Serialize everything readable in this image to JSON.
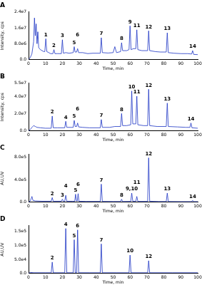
{
  "chart_data": [
    {
      "type": "line",
      "title": "A",
      "xlabel": "Time, min",
      "ylabel": "Intensity, cps",
      "color": "#1c34c4",
      "grid": false,
      "xlim": [
        0,
        100
      ],
      "xticks": [
        0,
        10,
        20,
        30,
        40,
        50,
        60,
        70,
        80,
        90,
        100
      ],
      "ylim": [
        0,
        24000000
      ],
      "yticks": [
        {
          "value": 0,
          "label": "0.0"
        },
        {
          "value": 8000000,
          "label": "8.0e6"
        },
        {
          "value": 16000000,
          "label": "1.6e7"
        },
        {
          "value": 24000000,
          "label": "2.4e7"
        }
      ],
      "x": [
        0,
        1,
        2,
        3,
        3.5,
        4,
        4.5,
        5,
        5.5,
        6,
        7,
        8,
        9,
        9.6,
        10.2,
        10.8,
        12,
        13,
        14.4,
        15,
        15.6,
        17,
        19.4,
        20,
        20.6,
        22,
        24,
        26.4,
        27,
        27.5,
        28.4,
        29,
        29.6,
        32,
        35,
        38,
        42.4,
        43,
        43.6,
        47,
        50,
        51,
        52,
        54.4,
        55,
        55.6,
        58,
        59.4,
        60,
        60.6,
        62,
        63.4,
        64,
        64.6,
        67,
        70.4,
        71,
        71.6,
        75,
        78,
        81.4,
        82,
        82.6,
        86,
        90,
        94,
        96.4,
        97,
        97.6,
        100
      ],
      "values": [
        0,
        1000000,
        3000000,
        9000000,
        21000000,
        12000000,
        18000000,
        8000000,
        14000000,
        6000000,
        5000000,
        4500000,
        4000000,
        4000000,
        10500000,
        4000000,
        3500000,
        3000000,
        3000000,
        5000000,
        3000000,
        3000000,
        3000000,
        10000000,
        3200000,
        3500000,
        3200000,
        3500000,
        6500000,
        3800000,
        3800000,
        5500000,
        3500000,
        3500000,
        3000000,
        3200000,
        3200000,
        11000000,
        3500000,
        3300000,
        3500000,
        6500000,
        3500000,
        4000000,
        8500000,
        4500000,
        4500000,
        5000000,
        17000000,
        5000000,
        5500000,
        5500000,
        15000000,
        5000000,
        4500000,
        4500000,
        14500000,
        4500000,
        4000000,
        3800000,
        3800000,
        13500000,
        3500000,
        3200000,
        3000000,
        3000000,
        2800000,
        4500000,
        2600000,
        2500000
      ],
      "annotations": [
        {
          "text": "1",
          "x": 10.2,
          "y": 10500000
        },
        {
          "text": "2",
          "x": 15,
          "y": 5000000
        },
        {
          "text": "3",
          "x": 20,
          "y": 10000000
        },
        {
          "text": "5",
          "x": 27,
          "y": 6500000
        },
        {
          "text": "6",
          "x": 29,
          "y": 5500000
        },
        {
          "text": "7",
          "x": 43,
          "y": 11000000
        },
        {
          "text": "8",
          "x": 55,
          "y": 8500000
        },
        {
          "text": "9",
          "x": 60,
          "y": 17000000
        },
        {
          "text": "11",
          "x": 64,
          "y": 15000000
        },
        {
          "text": "12",
          "x": 71,
          "y": 14500000
        },
        {
          "text": "13",
          "x": 82,
          "y": 13500000
        },
        {
          "text": "14",
          "x": 97,
          "y": 4500000
        }
      ]
    },
    {
      "type": "line",
      "title": "B",
      "xlabel": "Time, min",
      "ylabel": "Intensity, cps",
      "color": "#1c34c4",
      "grid": false,
      "xlim": [
        0,
        100
      ],
      "xticks": [
        0,
        10,
        20,
        30,
        40,
        50,
        60,
        70,
        80,
        90,
        100
      ],
      "ylim": [
        0,
        55000000
      ],
      "yticks": [
        {
          "value": 0,
          "label": "0.0"
        },
        {
          "value": 20000000,
          "label": "2.0e7"
        },
        {
          "value": 40000000,
          "label": "4.0e7"
        },
        {
          "value": 55000000,
          "label": "5.5e7"
        }
      ],
      "x": [
        0,
        1,
        2,
        3,
        4,
        5,
        7,
        10,
        13.4,
        14,
        14.6,
        17,
        21.4,
        22,
        22.6,
        25,
        26.4,
        27,
        27.6,
        28.4,
        29,
        29.6,
        32,
        36,
        42.4,
        43,
        43.6,
        48,
        51,
        54.4,
        55,
        55.6,
        58,
        60.4,
        61,
        61.6,
        63.4,
        64,
        64.6,
        68,
        70.4,
        71,
        71.6,
        76,
        81.4,
        82,
        82.6,
        88,
        93,
        95.4,
        96,
        96.6,
        100
      ],
      "values": [
        0,
        1500000,
        4000000,
        6000000,
        5000000,
        4000000,
        3500000,
        3000000,
        3000000,
        17000000,
        3500000,
        3500000,
        3500000,
        11000000,
        4000000,
        4000000,
        4000000,
        12000000,
        5000000,
        5000000,
        9000000,
        4500000,
        4000000,
        3500000,
        3500000,
        13000000,
        4000000,
        4000000,
        5000000,
        5000000,
        20000000,
        6000000,
        6000000,
        7000000,
        46000000,
        8000000,
        8000000,
        40000000,
        7000000,
        6000000,
        6000000,
        48000000,
        6000000,
        5000000,
        5000000,
        32000000,
        5000000,
        4500000,
        4000000,
        4000000,
        9000000,
        3500000,
        3000000
      ],
      "annotations": [
        {
          "text": "2",
          "x": 14,
          "y": 17000000
        },
        {
          "text": "4",
          "x": 22,
          "y": 11000000
        },
        {
          "text": "5",
          "x": 27,
          "y": 12000000
        },
        {
          "text": "6",
          "x": 29,
          "y": 9000000
        },
        {
          "text": "7",
          "x": 43,
          "y": 13000000
        },
        {
          "text": "8",
          "x": 55,
          "y": 20000000
        },
        {
          "text": "10",
          "x": 61,
          "y": 46000000
        },
        {
          "text": "11",
          "x": 64,
          "y": 40000000
        },
        {
          "text": "12",
          "x": 71,
          "y": 48000000
        },
        {
          "text": "13",
          "x": 82,
          "y": 32000000
        },
        {
          "text": "14",
          "x": 96,
          "y": 9000000
        }
      ]
    },
    {
      "type": "line",
      "title": "C",
      "xlabel": "Time, min",
      "ylabel": "AU,UV",
      "color": "#1c34c4",
      "grid": false,
      "xlim": [
        0,
        100
      ],
      "xticks": [
        0,
        10,
        20,
        30,
        40,
        50,
        60,
        70,
        80,
        90,
        100
      ],
      "ylim": [
        0,
        850000
      ],
      "yticks": [
        {
          "value": 0,
          "label": "0.0"
        },
        {
          "value": 400000,
          "label": "4.0e5"
        },
        {
          "value": 800000,
          "label": "8.0e5"
        }
      ],
      "x": [
        0,
        1,
        2,
        2.6,
        4,
        8,
        13.4,
        14,
        14.6,
        19.4,
        20,
        20.6,
        21.4,
        22,
        22.6,
        26,
        27.3,
        27.8,
        28.3,
        28.8,
        29.3,
        29.8,
        34,
        42.4,
        43,
        43.6,
        50,
        54.4,
        55,
        55.6,
        60.4,
        61,
        61.6,
        63.4,
        64,
        64.6,
        70.4,
        71,
        71.6,
        77,
        81.4,
        82,
        82.6,
        90,
        96.4,
        97,
        97.6,
        100
      ],
      "values": [
        0,
        20000,
        100000,
        30000,
        20000,
        15000,
        15000,
        80000,
        15000,
        15000,
        50000,
        15000,
        15000,
        120000,
        15000,
        15000,
        15000,
        140000,
        20000,
        20000,
        150000,
        15000,
        12000,
        12000,
        320000,
        12000,
        10000,
        10000,
        50000,
        10000,
        12000,
        160000,
        15000,
        15000,
        100000,
        12000,
        12000,
        790000,
        15000,
        10000,
        10000,
        160000,
        10000,
        8000,
        8000,
        30000,
        8000,
        8000
      ],
      "annotations": [
        {
          "text": "2",
          "x": 14,
          "y": 80000
        },
        {
          "text": "3",
          "x": 20,
          "y": 50000
        },
        {
          "text": "4",
          "x": 22,
          "y": 120000
        },
        {
          "text": "5",
          "x": 27.8,
          "y": 140000
        },
        {
          "text": "6",
          "x": 29.3,
          "y": 150000
        },
        {
          "text": "7",
          "x": 43,
          "y": 320000
        },
        {
          "text": "8",
          "x": 55,
          "y": 50000
        },
        {
          "text": "9,10",
          "x": 61,
          "y": 160000
        },
        {
          "text": "11",
          "x": 64,
          "y": 100000
        },
        {
          "text": "12",
          "x": 71,
          "y": 790000
        },
        {
          "text": "13",
          "x": 82,
          "y": 160000
        },
        {
          "text": "14",
          "x": 97,
          "y": 30000
        }
      ]
    },
    {
      "type": "line",
      "title": "D",
      "xlabel": "Time, min",
      "ylabel": "AU,UV",
      "color": "#1c34c4",
      "grid": false,
      "xlim": [
        0,
        100
      ],
      "xticks": [
        0,
        10,
        20,
        30,
        40,
        50,
        60,
        70,
        80,
        90,
        100
      ],
      "ylim": [
        0,
        170000
      ],
      "yticks": [
        {
          "value": 0,
          "label": "0.0"
        },
        {
          "value": 50000,
          "label": "5.0e4"
        },
        {
          "value": 100000,
          "label": "1.0e5"
        },
        {
          "value": 150000,
          "label": "1.5e5"
        }
      ],
      "x": [
        0,
        1,
        3,
        10,
        13.4,
        14,
        14.6,
        21.4,
        22,
        22.6,
        26.4,
        27,
        27.6,
        28.4,
        29,
        29.6,
        36,
        42.4,
        43,
        43.6,
        52,
        59.4,
        60,
        60.6,
        70.4,
        71,
        71.6,
        85,
        100
      ],
      "values": [
        0,
        3000,
        2000,
        2000,
        2000,
        40000,
        2000,
        2000,
        160000,
        2000,
        2000,
        120000,
        2000,
        2000,
        155000,
        2000,
        2000,
        2000,
        105000,
        2000,
        2000,
        2000,
        65000,
        2000,
        2000,
        45000,
        2000,
        2000,
        2000
      ],
      "annotations": [
        {
          "text": "2",
          "x": 14,
          "y": 40000
        },
        {
          "text": "4",
          "x": 22,
          "y": 160000
        },
        {
          "text": "5",
          "x": 27,
          "y": 120000
        },
        {
          "text": "6",
          "x": 29,
          "y": 155000
        },
        {
          "text": "7",
          "x": 43,
          "y": 105000
        },
        {
          "text": "10",
          "x": 60,
          "y": 65000
        },
        {
          "text": "12",
          "x": 71,
          "y": 45000
        }
      ]
    }
  ]
}
